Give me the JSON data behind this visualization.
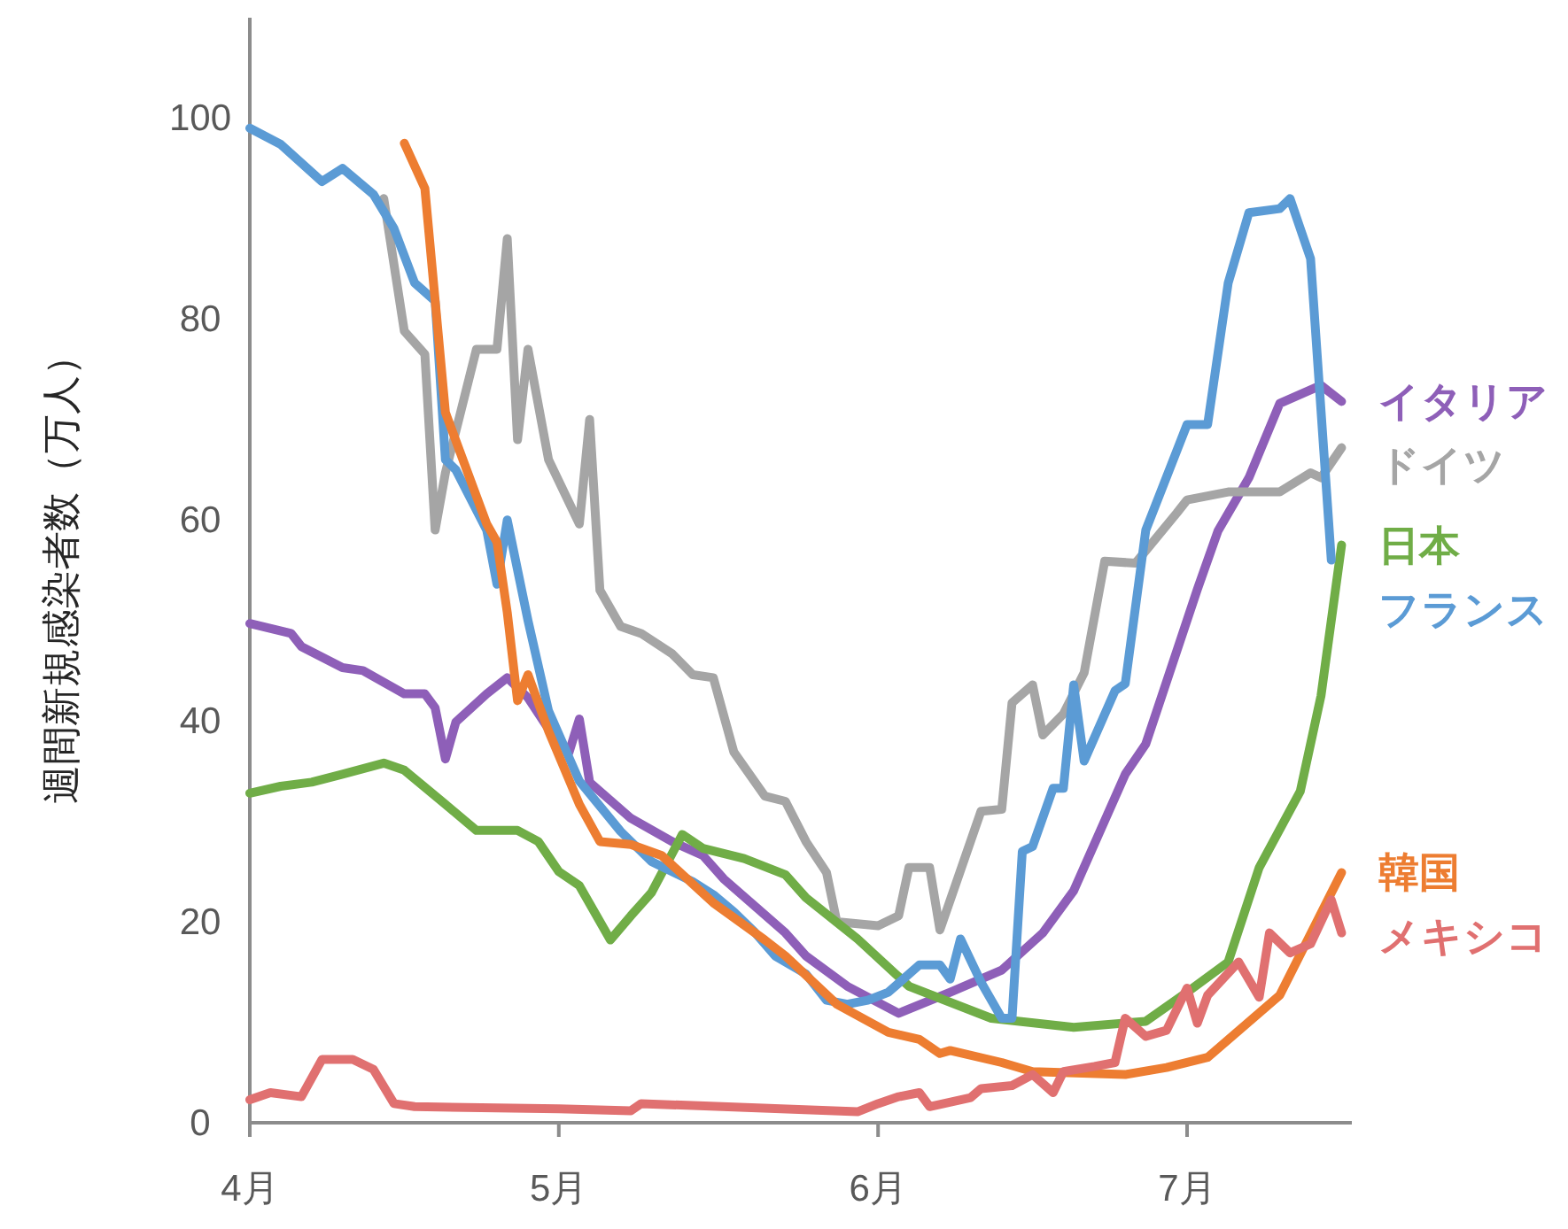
{
  "chart_data": {
    "type": "line",
    "ylabel": "週間新規感染者数（万人）",
    "xlim": [
      "--04-01",
      "--07-17"
    ],
    "xticks": [
      {
        "value": "--04-01",
        "label": "4月"
      },
      {
        "value": "--05-01",
        "label": "5月"
      },
      {
        "value": "--06-01",
        "label": "6月"
      },
      {
        "value": "--07-01",
        "label": "7月"
      }
    ],
    "ylim": [
      0,
      110
    ],
    "yticks": [
      0,
      20,
      40,
      60,
      80,
      100
    ],
    "grid": false,
    "line_style": "solid",
    "series": [
      {
        "name": "イタリア",
        "color": "#8e5fb8",
        "x": [
          "--04-01",
          "--04-05",
          "--04-06",
          "--04-10",
          "--04-12",
          "--04-16",
          "--04-18",
          "--04-19",
          "--04-20",
          "--04-21",
          "--04-24",
          "--04-26",
          "--04-28",
          "--04-30",
          "--05-02",
          "--05-03",
          "--05-04",
          "--05-08",
          "--05-12",
          "--05-15",
          "--05-17",
          "--05-23",
          "--05-25",
          "--05-29",
          "--06-03",
          "--06-08",
          "--06-13",
          "--06-17",
          "--06-20",
          "--06-25",
          "--06-27",
          "--07-02",
          "--07-04",
          "--07-07",
          "--07-10",
          "--07-14",
          "--07-16"
        ],
        "values": [
          49.7,
          48.7,
          47.4,
          45.3,
          45,
          42.7,
          42.7,
          41.3,
          36.2,
          39.9,
          42.7,
          44.3,
          42.3,
          39.2,
          36.9,
          40.2,
          33.9,
          30.3,
          28,
          26.6,
          24.3,
          18.9,
          16.6,
          13.6,
          10.9,
          13,
          15.2,
          18.9,
          23.1,
          34.7,
          37.7,
          53.1,
          58.9,
          64.2,
          71.6,
          73.4,
          71.8
        ]
      },
      {
        "name": "ドイツ",
        "color": "#a5a5a5",
        "x": [
          "--04-14",
          "--04-16",
          "--04-18",
          "--04-19",
          "--04-20",
          "--04-23",
          "--04-25",
          "--04-26",
          "--04-27",
          "--04-28",
          "--04-30",
          "--05-03",
          "--05-04",
          "--05-05",
          "--05-07",
          "--05-09",
          "--05-12",
          "--05-14",
          "--05-16",
          "--05-18",
          "--05-21",
          "--05-23",
          "--05-25",
          "--05-27",
          "--05-28",
          "--06-01",
          "--06-03",
          "--06-04",
          "--06-06",
          "--06-07",
          "--06-11",
          "--06-13",
          "--06-14",
          "--06-16",
          "--06-17",
          "--06-19",
          "--06-21",
          "--06-23",
          "--06-26",
          "--06-30",
          "--07-01",
          "--07-05",
          "--07-10",
          "--07-13",
          "--07-14",
          "--07-16"
        ],
        "values": [
          92,
          78.8,
          76.5,
          59,
          64.7,
          77,
          77,
          88,
          68,
          77,
          66,
          59.6,
          70,
          53,
          49.4,
          48.7,
          46.7,
          44.6,
          44.3,
          36.9,
          32.5,
          32,
          28,
          24.9,
          20,
          19.6,
          20.6,
          25.4,
          25.4,
          19.2,
          31,
          31.2,
          41.8,
          43.6,
          38.6,
          40.7,
          44.8,
          55.9,
          55.7,
          60.7,
          62,
          62.8,
          62.8,
          64.7,
          64.2,
          67.2
        ]
      },
      {
        "name": "日本",
        "color": "#70ad47",
        "x": [
          "--04-01",
          "--04-04",
          "--04-07",
          "--04-10",
          "--04-14",
          "--04-16",
          "--04-20",
          "--04-23",
          "--04-27",
          "--04-29",
          "--05-01",
          "--05-03",
          "--05-06",
          "--05-08",
          "--05-10",
          "--05-13",
          "--05-15",
          "--05-19",
          "--05-23",
          "--05-25",
          "--05-30",
          "--06-04",
          "--06-12",
          "--06-20",
          "--06-27",
          "--07-01",
          "--07-05",
          "--07-08",
          "--07-12",
          "--07-14",
          "--07-16"
        ],
        "values": [
          32.8,
          33.5,
          33.9,
          34.7,
          35.8,
          35.1,
          31.7,
          29.1,
          29.1,
          28,
          25,
          23.6,
          18.2,
          20.6,
          22.9,
          28.7,
          27.3,
          26.3,
          24.7,
          22.4,
          18.3,
          13.6,
          10.4,
          9.5,
          10.1,
          13,
          16,
          25.4,
          33,
          42.5,
          57.5
        ]
      },
      {
        "name": "フランス",
        "color": "#5b9bd5",
        "x": [
          "--04-01",
          "--04-04",
          "--04-08",
          "--04-10",
          "--04-13",
          "--04-15",
          "--04-17",
          "--04-19",
          "--04-20",
          "--04-21",
          "--04-24",
          "--04-25",
          "--04-26",
          "--04-28",
          "--04-30",
          "--05-03",
          "--05-07",
          "--05-10",
          "--05-14",
          "--05-16",
          "--05-18",
          "--05-20",
          "--05-22",
          "--05-25",
          "--05-27",
          "--05-29",
          "--05-31",
          "--06-02",
          "--06-05",
          "--06-07",
          "--06-08",
          "--06-09",
          "--06-11",
          "--06-13",
          "--06-14",
          "--06-15",
          "--06-16",
          "--06-18",
          "--06-19",
          "--06-20",
          "--06-21",
          "--06-24",
          "--06-25",
          "--06-27",
          "--07-01",
          "--07-03",
          "--07-05",
          "--07-07",
          "--07-10",
          "--07-11",
          "--07-13",
          "--07-15"
        ],
        "values": [
          99,
          97.4,
          93.7,
          95,
          92.4,
          89,
          83.6,
          81.8,
          66,
          65,
          59,
          53.6,
          60,
          50,
          41,
          34,
          29,
          26,
          24,
          22.7,
          21,
          19,
          16.6,
          14.8,
          12.2,
          11.8,
          12.2,
          13,
          15.7,
          15.7,
          14.3,
          18.3,
          14,
          10.4,
          10.4,
          27,
          27.5,
          33.3,
          33.3,
          43.6,
          36,
          43,
          43.7,
          59,
          69.5,
          69.5,
          83.6,
          90.6,
          91,
          92,
          86,
          56
        ]
      },
      {
        "name": "韓国",
        "color": "#ed7d31",
        "x": [
          "--04-16",
          "--04-18",
          "--04-20",
          "--04-24",
          "--04-25",
          "--04-26",
          "--04-27",
          "--04-28",
          "--04-30",
          "--05-03",
          "--05-05",
          "--05-08",
          "--05-11",
          "--05-16",
          "--05-21",
          "--05-23",
          "--05-28",
          "--06-02",
          "--06-05",
          "--06-07",
          "--06-08",
          "--06-13",
          "--06-16",
          "--06-25",
          "--06-29",
          "--07-03",
          "--07-10",
          "--07-16"
        ],
        "values": [
          97.5,
          93,
          70.7,
          59.6,
          57.8,
          50.8,
          42,
          44.6,
          39,
          31.7,
          28,
          27.7,
          26.6,
          21.9,
          18.2,
          16.6,
          11.8,
          9,
          8.3,
          6.9,
          7.2,
          6,
          5.1,
          4.8,
          5.5,
          6.5,
          12.7,
          24.9
        ]
      },
      {
        "name": "メキシコ",
        "color": "#e07070",
        "x": [
          "--04-01",
          "--04-03",
          "--04-06",
          "--04-08",
          "--04-11",
          "--04-13",
          "--04-15",
          "--04-17",
          "--05-01",
          "--05-08",
          "--05-09",
          "--05-30",
          "--06-01",
          "--06-03",
          "--06-05",
          "--06-06",
          "--06-10",
          "--06-11",
          "--06-14",
          "--06-16",
          "--06-18",
          "--06-19",
          "--06-22",
          "--06-24",
          "--06-25",
          "--06-27",
          "--06-29",
          "--07-01",
          "--07-02",
          "--07-03",
          "--07-06",
          "--07-08",
          "--07-09",
          "--07-11",
          "--07-13",
          "--07-15",
          "--07-16"
        ],
        "values": [
          2.3,
          3,
          2.6,
          6.3,
          6.3,
          5.3,
          1.9,
          1.6,
          1.4,
          1.2,
          1.9,
          1.1,
          1.9,
          2.6,
          3,
          1.6,
          2.5,
          3.4,
          3.7,
          4.8,
          3,
          5.1,
          5.6,
          6,
          10.4,
          8.6,
          9.2,
          13.4,
          9.9,
          12.7,
          16,
          12.5,
          18.9,
          16.9,
          17.8,
          22.2,
          18.9
        ]
      }
    ]
  }
}
